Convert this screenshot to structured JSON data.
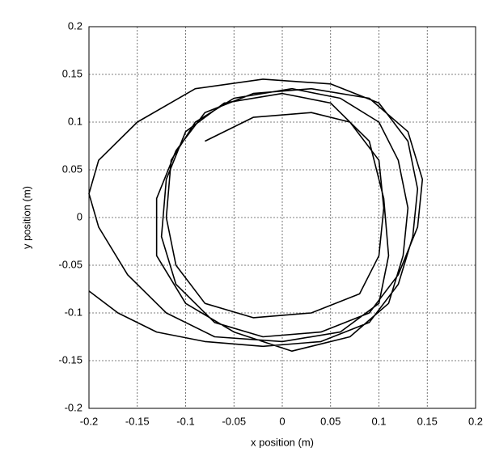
{
  "chart_data": {
    "type": "line",
    "xlabel": "x position (m)",
    "ylabel": "y position (m)",
    "xlim": [
      -0.2,
      0.2
    ],
    "ylim": [
      -0.2,
      0.2
    ],
    "xticks": [
      -0.2,
      -0.15,
      -0.1,
      -0.05,
      0,
      0.05,
      0.1,
      0.15,
      0.2
    ],
    "yticks": [
      -0.2,
      -0.15,
      -0.1,
      -0.05,
      0,
      0.05,
      0.1,
      0.15,
      0.2
    ],
    "grid": true,
    "color": "#000000",
    "x": [
      -0.2,
      -0.17,
      -0.13,
      -0.08,
      -0.02,
      0.04,
      0.09,
      0.12,
      0.135,
      0.14,
      0.13,
      0.1,
      0.05,
      -0.02,
      -0.09,
      -0.15,
      -0.19,
      -0.2,
      -0.19,
      -0.16,
      -0.12,
      -0.07,
      0,
      0.06,
      0.1,
      0.11,
      0.105,
      0.09,
      0.05,
      0,
      -0.06,
      -0.1,
      -0.12,
      -0.125,
      -0.11,
      -0.07,
      -0.02,
      0.04,
      0.09,
      0.12,
      0.14,
      0.145,
      0.13,
      0.09,
      0.03,
      -0.03,
      -0.08,
      -0.11,
      -0.13,
      -0.13,
      -0.1,
      -0.05,
      0.01,
      0.07,
      0.11,
      0.125,
      0.13,
      0.12,
      0.1,
      0.06,
      0.01,
      -0.05,
      -0.09,
      -0.115,
      -0.12,
      -0.11,
      -0.08,
      -0.03,
      0.03,
      0.08,
      0.1,
      0.105,
      0.1,
      0.07,
      0.03,
      -0.03,
      -0.08
    ],
    "values": [
      -0.077,
      -0.1,
      -0.12,
      -0.13,
      -0.135,
      -0.13,
      -0.11,
      -0.07,
      -0.02,
      0.03,
      0.08,
      0.12,
      0.14,
      0.145,
      0.135,
      0.1,
      0.06,
      0.025,
      -0.01,
      -0.06,
      -0.1,
      -0.125,
      -0.13,
      -0.12,
      -0.09,
      -0.04,
      0.02,
      0.08,
      0.12,
      0.13,
      0.12,
      0.09,
      0.04,
      -0.02,
      -0.07,
      -0.11,
      -0.125,
      -0.12,
      -0.1,
      -0.06,
      -0.01,
      0.04,
      0.09,
      0.125,
      0.135,
      0.13,
      0.11,
      0.07,
      0.02,
      -0.04,
      -0.09,
      -0.12,
      -0.14,
      -0.125,
      -0.09,
      -0.04,
      0.01,
      0.06,
      0.1,
      0.125,
      0.135,
      0.125,
      0.1,
      0.06,
      0,
      -0.05,
      -0.09,
      -0.105,
      -0.1,
      -0.08,
      -0.04,
      0.01,
      0.06,
      0.1,
      0.11,
      0.105,
      0.08
    ]
  }
}
